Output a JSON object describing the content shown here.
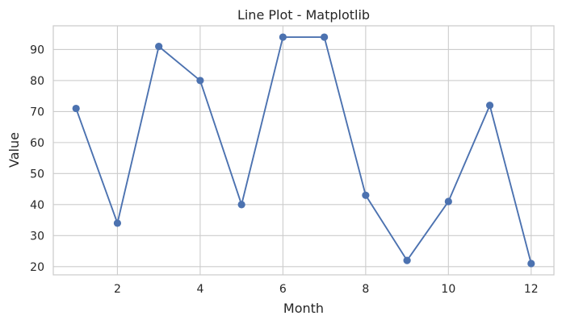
{
  "chart_data": {
    "type": "line",
    "title": "Line Plot - Matplotlib",
    "xlabel": "Month",
    "ylabel": "Value",
    "x": [
      1,
      2,
      3,
      4,
      5,
      6,
      7,
      8,
      9,
      10,
      11,
      12
    ],
    "series": [
      {
        "values": [
          71,
          34,
          91,
          80,
          40,
          94,
          94,
          43,
          22,
          41,
          72,
          21
        ],
        "color": "#4c72b0",
        "marker": "circle"
      }
    ],
    "xlim": [
      0.45,
      12.55
    ],
    "ylim": [
      17.35,
      97.65
    ],
    "xticks": [
      2,
      4,
      6,
      8,
      10,
      12
    ],
    "yticks": [
      20,
      30,
      40,
      50,
      60,
      70,
      80,
      90
    ],
    "grid": true,
    "colors": {
      "grid": "#cccccc",
      "spine": "#cccccc",
      "text": "#262626"
    }
  }
}
